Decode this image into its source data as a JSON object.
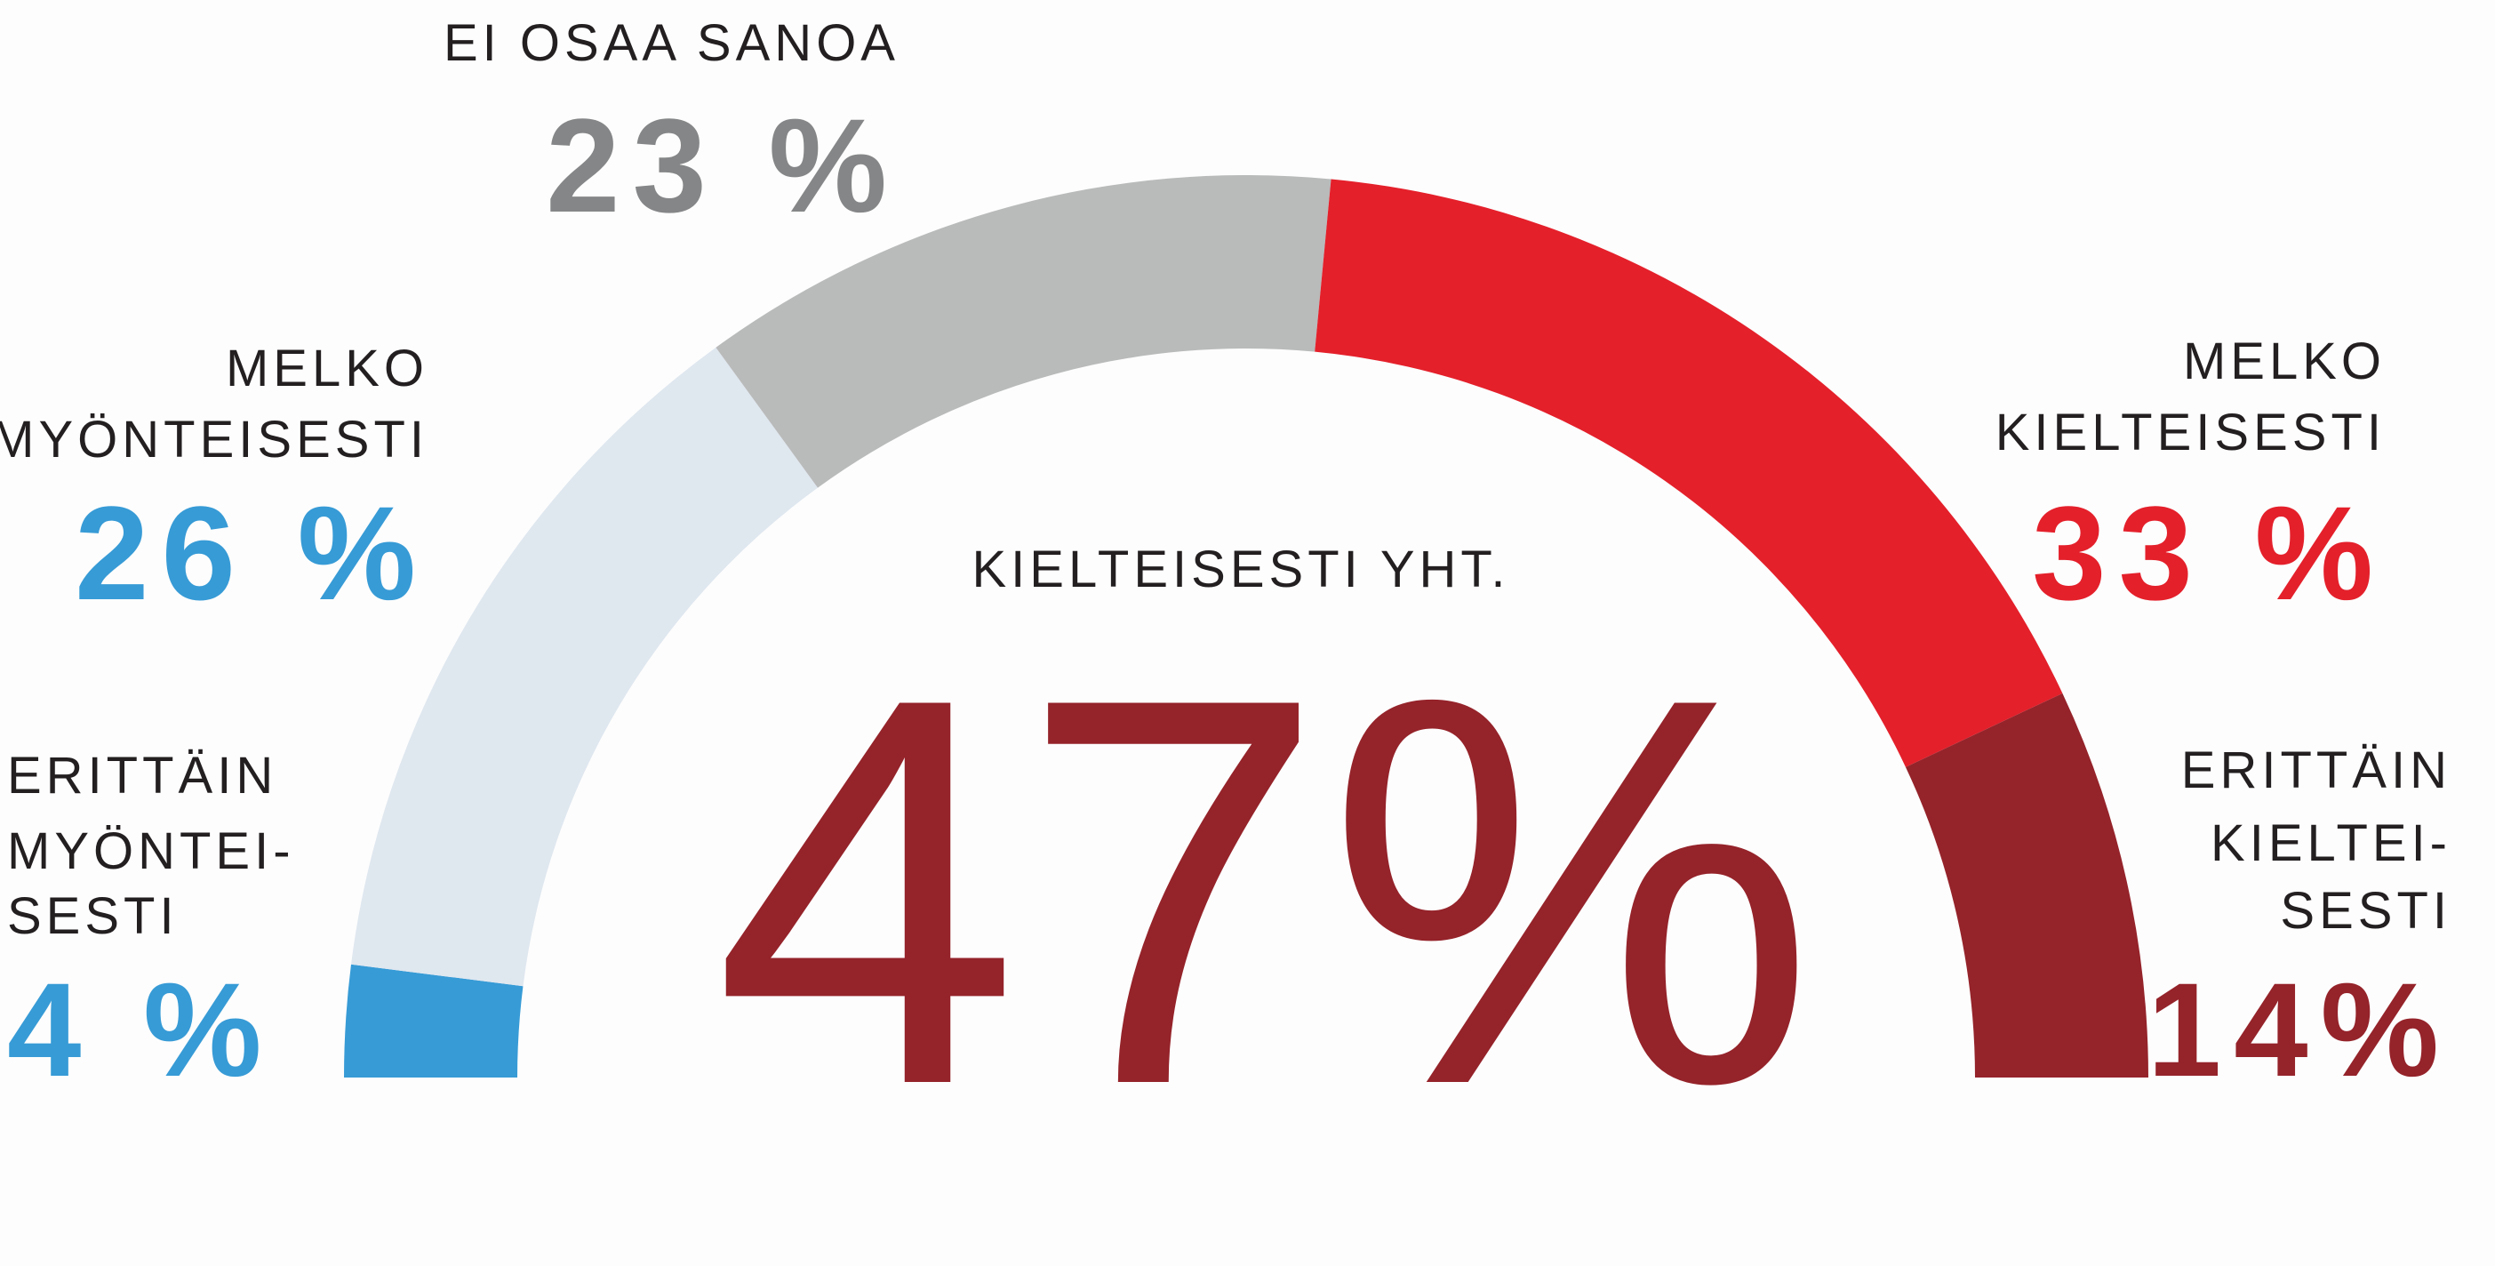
{
  "chart_data": {
    "type": "half-donut",
    "categories": [
      [
        "ERITTÄIN",
        "MYÖNTEI-",
        "SESTI"
      ],
      [
        "MELKO",
        "MYÖNTEISESTI"
      ],
      [
        "EI OSAA SANOA"
      ],
      [
        "MELKO",
        "KIELTEISESTI"
      ],
      [
        "ERITTÄIN",
        "KIELTEI-",
        "SESTI"
      ]
    ],
    "values": [
      4,
      26,
      23,
      33,
      14
    ],
    "value_labels": [
      "4 %",
      "26 %",
      "23 %",
      "33 %",
      "14%"
    ],
    "colors": [
      "#379bd6",
      "#dfe7ef",
      "#b9baba",
      "#e4202b",
      "#95232a"
    ],
    "label_colors": [
      "#379bd6",
      "#379bd6",
      "#858687",
      "#e4202b",
      "#95232a"
    ],
    "summary": {
      "label": "KIELTEISESTI YHT.",
      "value": 47,
      "value_label": "47%",
      "color": "#95232a"
    }
  }
}
